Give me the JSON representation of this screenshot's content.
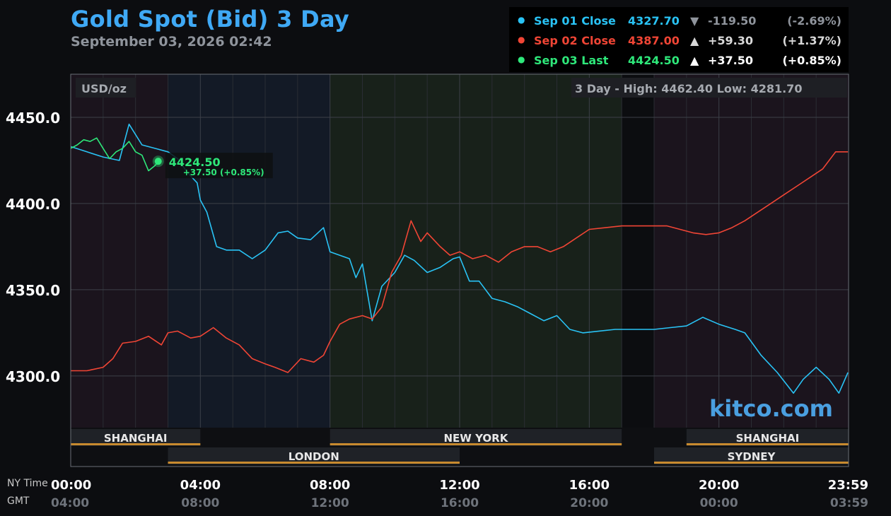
{
  "header": {
    "title": "Gold Spot (Bid) 3 Day",
    "subtitle": "September 03, 2026 02:42"
  },
  "legend": [
    {
      "name": "Sep 01 Close",
      "value": "4327.70",
      "arrow": "▼",
      "change": "-119.50",
      "pct": "(-2.69%)",
      "color": "#29c3f5",
      "value_color": "#29c3f5",
      "change_color": "#8f949c"
    },
    {
      "name": "Sep 02 Close",
      "value": "4387.00",
      "arrow": "▲",
      "change": "+59.30",
      "pct": "(+1.37%)",
      "color": "#f04535",
      "value_color": "#f04535",
      "change_color": "#d8d8d8"
    },
    {
      "name": "Sep 03 Last",
      "value": "4424.50",
      "arrow": "▲",
      "change": "+37.50",
      "pct": "(+0.85%)",
      "color": "#2ee87a",
      "value_color": "#2ee87a",
      "change_color": "#ffffff"
    }
  ],
  "plot": {
    "unit_label": "USD/oz",
    "range_text": "3 Day - High: 4462.40  Low: 4281.70",
    "last_value": "4424.50",
    "last_change": "+37.50 (+0.85%)",
    "watermark": "kitco.com",
    "time_labels": {
      "ny": "NY Time",
      "gmt": "GMT"
    }
  },
  "chart_data": {
    "type": "line",
    "x_unit": "hour of day (NY time)",
    "xlim": [
      0,
      24
    ],
    "ylim": [
      4270,
      4475
    ],
    "y_ticks": [
      {
        "value": 4300,
        "label": "4300.0"
      },
      {
        "value": 4350,
        "label": "4350.0"
      },
      {
        "value": 4400,
        "label": "4400.0"
      },
      {
        "value": 4450,
        "label": "4450.0"
      }
    ],
    "x_ticks": [
      {
        "value": 0,
        "ny": "00:00",
        "gmt": "04:00"
      },
      {
        "value": 4,
        "ny": "04:00",
        "gmt": "08:00"
      },
      {
        "value": 8,
        "ny": "08:00",
        "gmt": "12:00"
      },
      {
        "value": 12,
        "ny": "12:00",
        "gmt": "16:00"
      },
      {
        "value": 16,
        "ny": "16:00",
        "gmt": "20:00"
      },
      {
        "value": 20,
        "ny": "20:00",
        "gmt": "00:00"
      },
      {
        "value": 23.98,
        "ny": "23:59",
        "gmt": "03:59"
      }
    ],
    "grid": true,
    "sessions": [
      {
        "name": "SHANGHAI",
        "start": 0,
        "end": 4,
        "row": 1
      },
      {
        "name": "NEW YORK",
        "start": 8,
        "end": 17,
        "row": 1
      },
      {
        "name": "SHANGHAI",
        "start": 19,
        "end": 24,
        "row": 1
      },
      {
        "name": "LONDON",
        "start": 3,
        "end": 12,
        "row": 2
      },
      {
        "name": "SYDNEY",
        "start": 18,
        "end": 24,
        "row": 2
      }
    ],
    "series": [
      {
        "name": "Sep 01",
        "color": "#29c3f5",
        "x": [
          0,
          0.5,
          1,
          1.5,
          1.8,
          2.2,
          2.6,
          3.0,
          3.3,
          3.6,
          3.9,
          4.0,
          4.2,
          4.5,
          4.8,
          5.2,
          5.6,
          6.0,
          6.4,
          6.7,
          7.0,
          7.4,
          7.8,
          8.0,
          8.3,
          8.6,
          8.8,
          9.0,
          9.3,
          9.6,
          10.0,
          10.3,
          10.6,
          11.0,
          11.4,
          11.8,
          12.0,
          12.3,
          12.6,
          13.0,
          13.4,
          13.8,
          14.2,
          14.6,
          15.0,
          15.4,
          15.8,
          16.3,
          16.8,
          17.0,
          18.0,
          18.5,
          19.0,
          19.5,
          20.0,
          20.5,
          20.8,
          21.3,
          21.8,
          22.3,
          22.6,
          23.0,
          23.4,
          23.7,
          23.98
        ],
        "y": [
          4433,
          4430,
          4427,
          4425,
          4446,
          4434,
          4432,
          4430,
          4426,
          4418,
          4412,
          4402,
          4395,
          4375,
          4373,
          4373,
          4368,
          4373,
          4383,
          4384,
          4380,
          4379,
          4386,
          4372,
          4370,
          4368,
          4357,
          4365,
          4332,
          4352,
          4360,
          4370,
          4367,
          4360,
          4363,
          4368,
          4369,
          4355,
          4355,
          4345,
          4343,
          4340,
          4336,
          4332,
          4335,
          4327,
          4325,
          4326,
          4327,
          4327,
          4327,
          4328,
          4329,
          4334,
          4330,
          4327,
          4325,
          4312,
          4302,
          4290,
          4298,
          4305,
          4298,
          4290,
          4302
        ]
      },
      {
        "name": "Sep 02",
        "color": "#f04535",
        "x": [
          0,
          0.5,
          1,
          1.3,
          1.6,
          2.0,
          2.4,
          2.8,
          3.0,
          3.3,
          3.7,
          4.0,
          4.4,
          4.8,
          5.2,
          5.6,
          6.0,
          6.3,
          6.7,
          7.1,
          7.5,
          7.8,
          8.0,
          8.3,
          8.6,
          9.0,
          9.3,
          9.6,
          9.9,
          10.2,
          10.5,
          10.8,
          11.0,
          11.4,
          11.7,
          12.0,
          12.4,
          12.8,
          13.2,
          13.6,
          14.0,
          14.4,
          14.8,
          15.2,
          15.6,
          16.0,
          16.5,
          17.0,
          18.0,
          18.4,
          18.8,
          19.2,
          19.6,
          20.0,
          20.4,
          20.8,
          21.2,
          21.6,
          22.0,
          22.4,
          22.8,
          23.2,
          23.6,
          23.98
        ],
        "y": [
          4303,
          4303,
          4305,
          4310,
          4319,
          4320,
          4323,
          4318,
          4325,
          4326,
          4322,
          4323,
          4328,
          4322,
          4318,
          4310,
          4307,
          4305,
          4302,
          4310,
          4308,
          4312,
          4320,
          4330,
          4333,
          4335,
          4333,
          4340,
          4360,
          4370,
          4390,
          4378,
          4383,
          4375,
          4370,
          4372,
          4368,
          4370,
          4366,
          4372,
          4375,
          4375,
          4372,
          4375,
          4380,
          4385,
          4386,
          4387,
          4387,
          4387,
          4385,
          4383,
          4382,
          4383,
          4386,
          4390,
          4395,
          4400,
          4405,
          4410,
          4415,
          4420,
          4430,
          4430
        ]
      },
      {
        "name": "Sep 03",
        "color": "#2ee87a",
        "x": [
          0,
          0.2,
          0.4,
          0.6,
          0.8,
          1.0,
          1.2,
          1.4,
          1.6,
          1.8,
          2.0,
          2.2,
          2.4,
          2.6,
          2.7
        ],
        "y": [
          4432,
          4434,
          4437,
          4436,
          4438,
          4432,
          4426,
          4430,
          4432,
          4436,
          4430,
          4428,
          4419,
          4422,
          4424.5
        ]
      }
    ]
  }
}
